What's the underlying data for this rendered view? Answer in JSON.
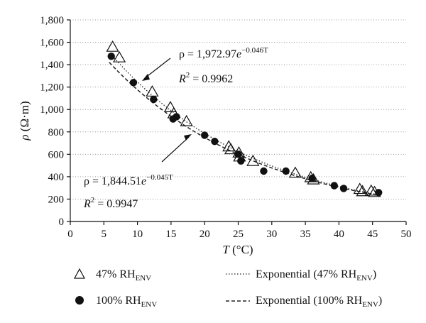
{
  "chart_data": {
    "type": "scatter",
    "xlabel": {
      "symbol": "T",
      "unit": " (°C)"
    },
    "ylabel": {
      "symbol": "ρ",
      "unit": " (Ω·m)"
    },
    "xlim": [
      0,
      50
    ],
    "ylim": [
      0,
      1800
    ],
    "x_ticks": [
      0,
      5,
      10,
      15,
      20,
      25,
      30,
      35,
      40,
      45,
      50
    ],
    "y_ticks": [
      0,
      200,
      400,
      600,
      800,
      1000,
      1200,
      1400,
      1600,
      1800
    ],
    "x_tick_labels": [
      "0",
      "5",
      "10",
      "15",
      "20",
      "25",
      "30",
      "35",
      "40",
      "45",
      "50"
    ],
    "y_tick_labels": [
      "0",
      "200",
      "400",
      "600",
      "800",
      "1,000",
      "1,200",
      "1,400",
      "1,600",
      "1,800"
    ],
    "grid": "horizontal dotted",
    "series": [
      {
        "name": "47% RH",
        "name_sub": "ENV",
        "marker": "open-triangle",
        "points": [
          [
            6.3,
            1555
          ],
          [
            7.3,
            1460
          ],
          [
            12.2,
            1155
          ],
          [
            14.9,
            1015
          ],
          [
            15.4,
            960
          ],
          [
            17.3,
            890
          ],
          [
            23.6,
            665
          ],
          [
            23.9,
            640
          ],
          [
            25.1,
            610
          ],
          [
            25.2,
            575
          ],
          [
            27.2,
            535
          ],
          [
            33.5,
            430
          ],
          [
            35.8,
            390
          ],
          [
            36.2,
            370
          ],
          [
            43.1,
            285
          ],
          [
            43.5,
            265
          ],
          [
            44.8,
            270
          ],
          [
            45.3,
            258
          ]
        ]
      },
      {
        "name": "100% RH",
        "name_sub": "ENV",
        "marker": "filled-circle",
        "points": [
          [
            6.1,
            1475
          ],
          [
            9.4,
            1240
          ],
          [
            12.4,
            1090
          ],
          [
            15.3,
            915
          ],
          [
            15.8,
            935
          ],
          [
            20.0,
            770
          ],
          [
            21.5,
            715
          ],
          [
            25.0,
            600
          ],
          [
            25.4,
            540
          ],
          [
            28.8,
            450
          ],
          [
            32.1,
            450
          ],
          [
            36.0,
            385
          ],
          [
            39.3,
            320
          ],
          [
            40.7,
            295
          ],
          [
            45.9,
            258
          ]
        ]
      }
    ],
    "fits": [
      {
        "name": "Exponential (47% RH",
        "name_sub": "ENV",
        "name_tail": ")",
        "style": "dotted",
        "a": 1972.97,
        "b": -0.046
      },
      {
        "name": "Exponential (100% RH",
        "name_sub": "ENV",
        "name_tail": ")",
        "style": "dashed",
        "a": 1844.51,
        "b": -0.045
      }
    ],
    "annotations": [
      {
        "eq_lhs": "ρ = 1,972.97",
        "eq_base": "e",
        "eq_exp": "−0.046T",
        "r2_lhs": "R",
        "r2_sup": "2",
        "r2_rhs": " = 0.9962"
      },
      {
        "eq_lhs": "ρ = 1,844.51",
        "eq_base": "e",
        "eq_exp": "−0.045T",
        "r2_lhs": "R",
        "r2_sup": "2",
        "r2_rhs": " = 0.9947"
      }
    ]
  }
}
